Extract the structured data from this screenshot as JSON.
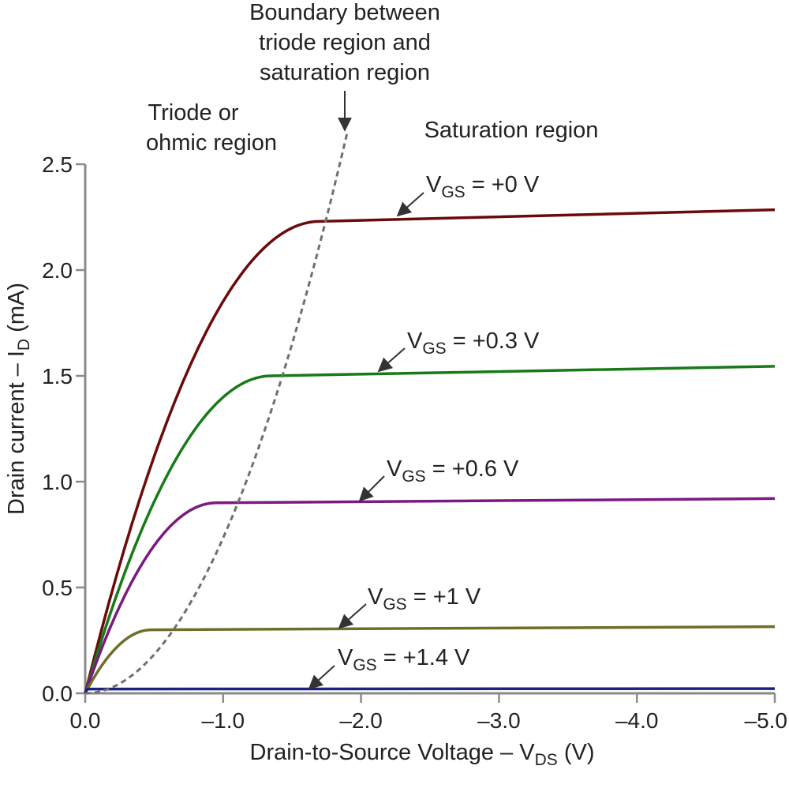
{
  "chart_data": {
    "type": "line",
    "xlabel": {
      "main": "Drain-to-Source Voltage – V",
      "sub": "DS",
      "unit": " (V)"
    },
    "ylabel": {
      "main": "Drain current – I",
      "sub": "D",
      "unit": " (mA)"
    },
    "xlim": [
      0,
      -5
    ],
    "ylim": [
      0,
      2.5
    ],
    "x_ticks": [
      0,
      -1,
      -2,
      -3,
      -4,
      -5
    ],
    "x_tick_labels": [
      "0.0",
      "–1.0",
      "–2.0",
      "–3.0",
      "–4.0",
      "–5.0"
    ],
    "y_ticks": [
      0,
      0.5,
      1.0,
      1.5,
      2.0,
      2.5
    ],
    "y_tick_labels": [
      "0.0",
      "0.5",
      "1.0",
      "1.5",
      "2.0",
      "2.5"
    ],
    "grid": false,
    "series": [
      {
        "name": "VGS = +0 V",
        "label_main": "V",
        "label_sub": "GS",
        "label_rest": " = +0 V",
        "vgs": 0,
        "color": "#6b0a0a",
        "knee_x": -1.7,
        "knee_y": 2.23,
        "end_y": 2.285
      },
      {
        "name": "VGS = +0.3 V",
        "label_main": "V",
        "label_sub": "GS",
        "label_rest": " = +0.3 V",
        "vgs": 0.3,
        "color": "#177a17",
        "knee_x": -1.35,
        "knee_y": 1.5,
        "end_y": 1.545
      },
      {
        "name": "VGS = +0.6 V",
        "label_main": "V",
        "label_sub": "GS",
        "label_rest": " = +0.6 V",
        "vgs": 0.6,
        "color": "#7a1a80",
        "knee_x": -0.95,
        "knee_y": 0.9,
        "end_y": 0.92
      },
      {
        "name": "VGS = +1 V",
        "label_main": "V",
        "label_sub": "GS",
        "label_rest": " = +1 V",
        "vgs": 1.0,
        "color": "#6e6e2a",
        "knee_x": -0.48,
        "knee_y": 0.3,
        "end_y": 0.315
      },
      {
        "name": "VGS = +1.4 V",
        "label_main": "V",
        "label_sub": "GS",
        "label_rest": " = +1.4 V",
        "vgs": 1.4,
        "color": "#1a237e",
        "knee_x": -0.02,
        "knee_y": 0.02,
        "end_y": 0.022
      }
    ],
    "boundary": {
      "style": "dashed",
      "color": "#6f6f6f",
      "end_x": -1.9,
      "end_y": 2.65
    },
    "annotations": {
      "boundary": [
        "Boundary between",
        "triode region and",
        "saturation region"
      ],
      "triode": [
        "Triode or",
        "ohmic region"
      ],
      "saturation": "Saturation region"
    }
  }
}
